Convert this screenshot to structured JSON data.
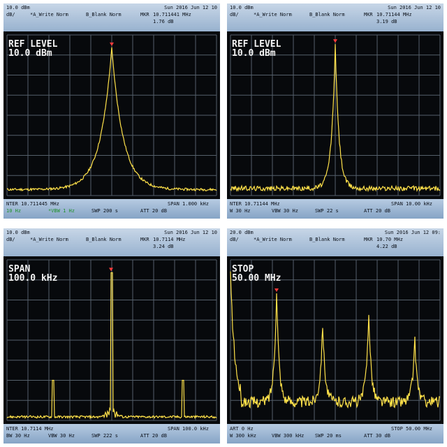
{
  "colors": {
    "trace": "#ffe24a",
    "marker": "#ff3b3b",
    "grid": "#55606b",
    "header_bg": "#b0c4dd"
  },
  "panels": [
    {
      "ref": "10.0 dBm",
      "unit": "dB/",
      "write": "*A_Write Norm",
      "blank": "B_Blank Norm",
      "mkr_label": "MKR",
      "datetime": "Sun 2016 Jun 12 10",
      "mkr_freq": "10.711441 MHz",
      "mkr_amp": "1.76 dB",
      "big_line1": "REF LEVEL",
      "big_line2": "10.0 dBm",
      "center": "NTER 10.711445 MHz",
      "span": "SPAN 1.000 kHz",
      "rbw": "10 Hz",
      "vbw": "*VBW 1 Hz",
      "swp": "SWP 200 s",
      "att": "ATT 20 dB",
      "trace_type": "wide-peak"
    },
    {
      "ref": "10.0 dBm",
      "unit": "dB/",
      "write": "*A_Write Norm",
      "blank": "B_Blank Norm",
      "mkr_label": "MKR",
      "datetime": "Sun 2016 Jun 12 10",
      "mkr_freq": "10.71144 MHz",
      "mkr_amp": "3.19 dB",
      "big_line1": "REF LEVEL",
      "big_line2": "10.0 dBm",
      "center": "NTER 10.71144 MHz",
      "span": "SPAN 10.00 kHz",
      "rbw": "W 30 Hz",
      "vbw": "VBW 30 Hz",
      "swp": "SWP 22 s",
      "att": "ATT 20 dB",
      "trace_type": "narrow-peak"
    },
    {
      "ref": "10.0 dBm",
      "unit": "dB/",
      "write": "*A_Write Norm",
      "blank": "B_Blank Norm",
      "mkr_label": "MKR",
      "datetime": "Sun 2016 Jun 12 10",
      "mkr_freq": "10.7114 MHz",
      "mkr_amp": "3.24 dB",
      "big_line1": "SPAN",
      "big_line2": "100.0 kHz",
      "center": "NTER 10.7114 MHz",
      "span": "SPAN 100.0 kHz",
      "rbw": "BW 30 Hz",
      "vbw": "VBW 30 Hz",
      "swp": "SWP 222 s",
      "att": "ATT 20 dB",
      "trace_type": "spike"
    },
    {
      "ref": "20.0 dBm",
      "unit": "dB/",
      "write": "*A_Write Norm",
      "blank": "B_Blank Norm",
      "mkr_label": "MKR",
      "datetime": "Sun 2016 Jun 12 09:",
      "mkr_freq": "10.70 MHz",
      "mkr_amp": "4.22 dB",
      "big_line1": "STOP",
      "big_line2": "50.00 MHz",
      "center": "ART 0 Hz",
      "span": "STOP 50.00 MHz",
      "rbw": "W 300 kHz",
      "vbw": "VBW 300 kHz",
      "swp": "SWP 20 ms",
      "att": "ATT 30 dB",
      "trace_type": "harmonics"
    }
  ]
}
